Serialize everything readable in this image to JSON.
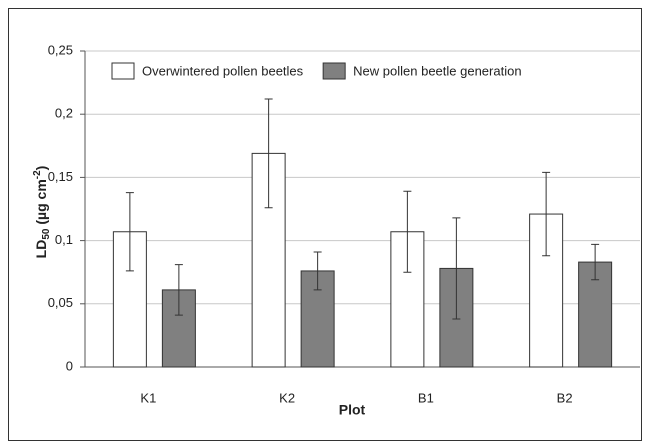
{
  "chart_data": {
    "type": "bar",
    "xlabel": "Plot",
    "ylabel_parts": [
      "LD",
      "50",
      " (µg cm",
      "-2",
      ")"
    ],
    "categories": [
      "K1",
      "K2",
      "B1",
      "B2"
    ],
    "series": [
      {
        "name": "Overwintered pollen beetles",
        "color": "#ffffff",
        "values": [
          0.107,
          0.169,
          0.107,
          0.121
        ],
        "errors": [
          0.031,
          0.043,
          0.032,
          0.033
        ]
      },
      {
        "name": "New pollen beetle generation",
        "color": "#808080",
        "values": [
          0.061,
          0.076,
          0.078,
          0.083
        ],
        "errors": [
          0.02,
          0.015,
          0.04,
          0.014
        ]
      }
    ],
    "ylim": [
      0,
      0.25
    ],
    "yticks": [
      0,
      {
        "value": 0.05,
        "label": "0,05"
      },
      {
        "value": 0.1,
        "label": "0,1"
      },
      {
        "value": 0.15,
        "label": "0,15"
      },
      {
        "value": 0.2,
        "label": "0,2"
      },
      {
        "value": 0.25,
        "label": "0,25"
      }
    ],
    "grid": true
  }
}
